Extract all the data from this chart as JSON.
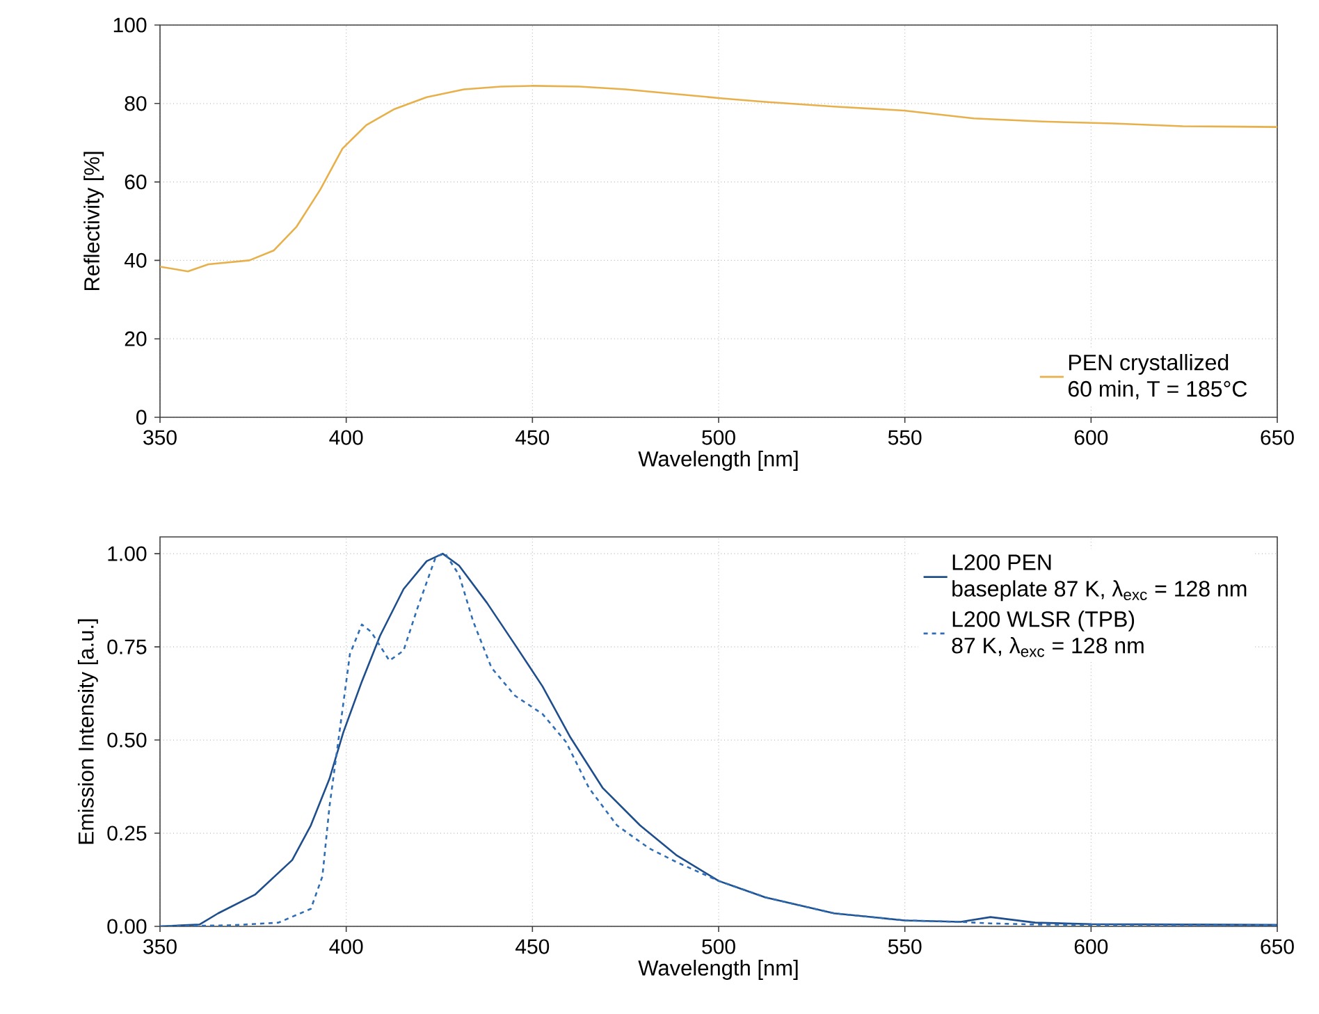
{
  "chart_data": [
    {
      "type": "line",
      "xlabel": "Wavelength [nm]",
      "ylabel": "Reflectivity [%]",
      "xlim": [
        350,
        650
      ],
      "ylim": [
        0,
        100
      ],
      "xticks": [
        350,
        400,
        450,
        500,
        550,
        600,
        650
      ],
      "yticks": [
        0,
        20,
        40,
        60,
        80,
        100
      ],
      "grid": true,
      "legend": "bottom right",
      "series": [
        {
          "name": "PEN crystallized 60 min, T = 185°C",
          "color": "#e8b04a",
          "x": [
            350,
            357.5,
            363,
            374,
            380.5,
            386.6,
            393,
            399,
            405.4,
            413,
            421.6,
            431.6,
            441.5,
            450,
            462.7,
            475,
            487.5,
            501,
            512.5,
            531,
            549.8,
            568.5,
            587,
            605.9,
            624.6,
            650
          ],
          "values": [
            38.4,
            37.2,
            39,
            40,
            42.5,
            48.5,
            58,
            68.5,
            74.5,
            78.6,
            81.6,
            83.6,
            84.3,
            84.5,
            84.3,
            83.6,
            82.5,
            81.3,
            80.4,
            79.2,
            78.2,
            76.2,
            75.4,
            74.9,
            74.2,
            74.0
          ]
        }
      ]
    },
    {
      "type": "line",
      "xlabel": "Wavelength [nm]",
      "ylabel": "Emission Intensity [a.u.]",
      "xlim": [
        350,
        650
      ],
      "ylim": [
        0,
        1.045
      ],
      "xticks": [
        350,
        400,
        450,
        500,
        550,
        600,
        650
      ],
      "yticks": [
        {
          "value": 0,
          "label": "0.00"
        },
        {
          "value": 0.25,
          "label": "0.25"
        },
        {
          "value": 0.5,
          "label": "0.50"
        },
        {
          "value": 0.75,
          "label": "0.75"
        },
        {
          "value": 1,
          "label": "1.00"
        }
      ],
      "grid": true,
      "legend": "top right",
      "series": [
        {
          "name": "L200 PEN baseplate 87 K, λ$_{exc}$ = 128 nm",
          "color": "#1f4e8c",
          "line_style": "solid",
          "x": [
            350,
            360.6,
            365.6,
            375.5,
            385.5,
            390.5,
            395.5,
            399.2,
            404.2,
            409.1,
            415.4,
            421.6,
            425.9,
            430.3,
            437.8,
            445.3,
            452.7,
            460.2,
            468.9,
            478.9,
            488.8,
            500,
            512.5,
            531,
            550,
            565,
            573,
            585,
            600,
            650
          ],
          "values": [
            0,
            0.005,
            0.035,
            0.085,
            0.178,
            0.271,
            0.396,
            0.52,
            0.657,
            0.78,
            0.905,
            0.98,
            1.0,
            0.968,
            0.868,
            0.756,
            0.644,
            0.507,
            0.371,
            0.271,
            0.19,
            0.122,
            0.078,
            0.035,
            0.016,
            0.012,
            0.025,
            0.01,
            0.006,
            0.004
          ]
        },
        {
          "name": "L200 WLSR (TPB) 87 K, λ$_{exc}$ = 128 nm",
          "color": "#2f6db5",
          "line_style": "dashed",
          "x": [
            350,
            369.3,
            381.8,
            390.5,
            393.6,
            395.5,
            398,
            401,
            404.2,
            406.7,
            411.6,
            415.4,
            419.1,
            424.1,
            426.6,
            430.3,
            434.1,
            439,
            445.3,
            452.7,
            459,
            465.2,
            472.7,
            481.4,
            488.8,
            500,
            512.5,
            531,
            550,
            565,
            573,
            585,
            600,
            650
          ],
          "values": [
            0,
            0.003,
            0.01,
            0.047,
            0.134,
            0.321,
            0.507,
            0.731,
            0.81,
            0.79,
            0.713,
            0.74,
            0.853,
            0.993,
            1.0,
            0.943,
            0.818,
            0.694,
            0.619,
            0.57,
            0.495,
            0.371,
            0.271,
            0.209,
            0.172,
            0.122,
            0.078,
            0.035,
            0.016,
            0.012,
            0.008,
            0.005,
            0.004,
            0.003
          ]
        }
      ]
    }
  ]
}
